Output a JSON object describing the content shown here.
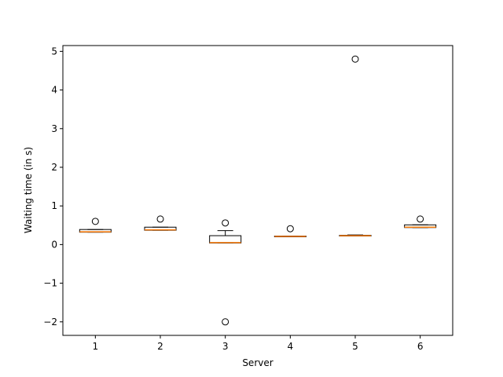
{
  "chart_data": {
    "type": "boxplot",
    "xlabel": "Server",
    "ylabel": "Waiting time (in s)",
    "ylim": [
      -2.35,
      5.15
    ],
    "yticks": [
      -2,
      -1,
      0,
      1,
      2,
      3,
      4,
      5
    ],
    "ytick_labels": [
      "−2",
      "−1",
      "0",
      "1",
      "2",
      "3",
      "4",
      "5"
    ],
    "categories": [
      "1",
      "2",
      "3",
      "4",
      "5",
      "6"
    ],
    "boxes": [
      {
        "category": "1",
        "whisker_low": 0.32,
        "q1": 0.32,
        "median": 0.33,
        "q3": 0.39,
        "whisker_high": 0.39,
        "outliers": [
          0.6
        ]
      },
      {
        "category": "2",
        "whisker_low": 0.37,
        "q1": 0.37,
        "median": 0.38,
        "q3": 0.45,
        "whisker_high": 0.45,
        "outliers": [
          0.66
        ]
      },
      {
        "category": "3",
        "whisker_low": 0.04,
        "q1": 0.04,
        "median": 0.05,
        "q3": 0.23,
        "whisker_high": 0.36,
        "outliers": [
          0.56,
          -2.0
        ]
      },
      {
        "category": "4",
        "whisker_low": 0.2,
        "q1": 0.2,
        "median": 0.21,
        "q3": 0.22,
        "whisker_high": 0.22,
        "outliers": [
          0.41
        ]
      },
      {
        "category": "5",
        "whisker_low": 0.22,
        "q1": 0.22,
        "median": 0.23,
        "q3": 0.24,
        "whisker_high": 0.25,
        "outliers": [
          4.8
        ]
      },
      {
        "category": "6",
        "whisker_low": 0.44,
        "q1": 0.44,
        "median": 0.45,
        "q3": 0.51,
        "whisker_high": 0.51,
        "outliers": [
          0.66
        ]
      }
    ],
    "colors": {
      "box": "#000000",
      "median": "#ff7f0e",
      "outlier_edge": "#000000"
    },
    "grid": false,
    "legend": "none"
  }
}
